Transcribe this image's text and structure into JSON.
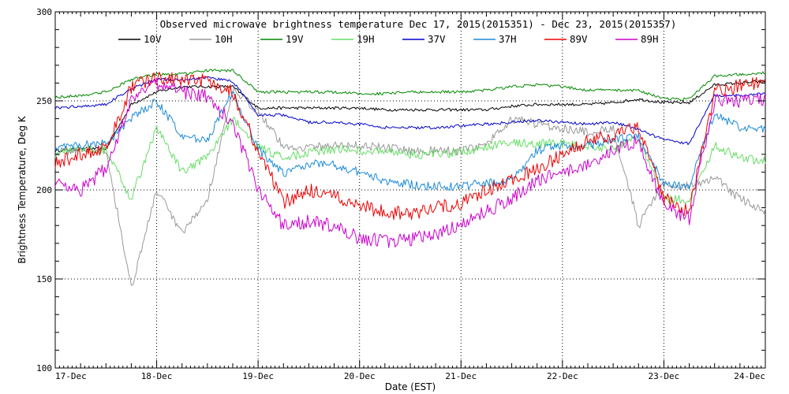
{
  "chart_data": {
    "type": "line",
    "title": "Observed microwave brightness temperature Dec 17, 2015(2015351) - Dec 23, 2015(2015357)",
    "xlabel": "Date (EST)",
    "ylabel": "Brightness Temperature, Deg K",
    "xlim": [
      0,
      7
    ],
    "ylim": [
      100,
      300
    ],
    "categories": [
      "17-Dec",
      "18-Dec",
      "19-Dec",
      "20-Dec",
      "21-Dec",
      "22-Dec",
      "23-Dec",
      "24-Dec"
    ],
    "yticks": [
      100,
      150,
      200,
      250,
      300
    ],
    "grid": true,
    "grid_style": "dotted",
    "legend_position": "top",
    "x": [
      0,
      0.25,
      0.5,
      0.75,
      1.0,
      1.25,
      1.5,
      1.75,
      2.0,
      2.25,
      2.5,
      2.75,
      3.0,
      3.25,
      3.5,
      3.75,
      4.0,
      4.25,
      4.5,
      4.75,
      5.0,
      5.25,
      5.5,
      5.75,
      6.0,
      6.25,
      6.5,
      6.75,
      7.0
    ],
    "series": [
      {
        "name": "10V",
        "color": "#000000",
        "values": [
          222,
          223,
          223,
          248,
          255,
          258,
          258,
          258,
          246,
          246,
          246,
          246,
          246,
          245,
          245,
          245,
          245,
          245,
          247,
          248,
          248,
          248,
          249,
          251,
          249,
          249,
          259,
          260,
          261
        ]
      },
      {
        "name": "10H",
        "color": "#999999",
        "values": [
          221,
          223,
          223,
          145,
          200,
          175,
          195,
          255,
          245,
          224,
          224,
          225,
          225,
          224,
          222,
          222,
          222,
          225,
          240,
          237,
          235,
          232,
          235,
          180,
          203,
          202,
          207,
          195,
          188
        ]
      },
      {
        "name": "19V",
        "color": "#008800",
        "values": [
          252,
          253,
          255,
          262,
          265,
          265,
          267,
          267,
          255,
          255,
          255,
          255,
          254,
          254,
          255,
          255,
          255,
          256,
          258,
          259,
          258,
          256,
          256,
          256,
          251,
          251,
          264,
          265,
          266
        ]
      },
      {
        "name": "19H",
        "color": "#66dd66",
        "values": [
          220,
          224,
          222,
          195,
          235,
          210,
          218,
          240,
          224,
          218,
          221,
          223,
          222,
          222,
          220,
          220,
          221,
          224,
          227,
          226,
          226,
          225,
          223,
          230,
          195,
          194,
          225,
          218,
          216
        ]
      },
      {
        "name": "37V",
        "color": "#0000cc",
        "values": [
          246,
          247,
          248,
          257,
          262,
          262,
          263,
          261,
          242,
          242,
          238,
          238,
          237,
          235,
          235,
          235,
          236,
          237,
          238,
          239,
          238,
          237,
          238,
          234,
          228,
          226,
          253,
          253,
          254
        ]
      },
      {
        "name": "37H",
        "color": "#1a8ad8",
        "values": [
          224,
          225,
          226,
          240,
          250,
          230,
          228,
          255,
          223,
          209,
          215,
          214,
          210,
          205,
          203,
          202,
          202,
          204,
          205,
          222,
          225,
          225,
          228,
          230,
          203,
          202,
          243,
          235,
          234
        ]
      },
      {
        "name": "89V",
        "color": "#ee0000",
        "values": [
          215,
          220,
          223,
          258,
          263,
          262,
          262,
          255,
          222,
          193,
          200,
          196,
          192,
          187,
          187,
          190,
          192,
          200,
          205,
          212,
          220,
          228,
          230,
          235,
          195,
          188,
          255,
          259,
          260
        ]
      },
      {
        "name": "89H",
        "color": "#cc00cc",
        "values": [
          205,
          200,
          212,
          250,
          260,
          255,
          252,
          238,
          200,
          180,
          182,
          180,
          173,
          171,
          172,
          175,
          180,
          188,
          195,
          205,
          210,
          215,
          222,
          228,
          190,
          184,
          250,
          250,
          251
        ]
      }
    ]
  }
}
